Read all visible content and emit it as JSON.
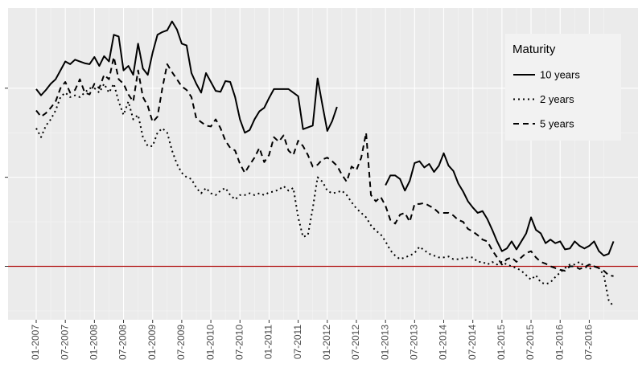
{
  "chart_data": {
    "type": "line",
    "categories": [
      "01-2007",
      null,
      null,
      null,
      null,
      null,
      "07-2007",
      null,
      null,
      null,
      null,
      null,
      "01-2008",
      null,
      null,
      null,
      null,
      null,
      "07-2008",
      null,
      null,
      null,
      null,
      null,
      "01-2009",
      null,
      null,
      null,
      null,
      null,
      "07-2009",
      null,
      null,
      null,
      null,
      null,
      "01-2010",
      null,
      null,
      null,
      null,
      null,
      "07-2010",
      null,
      null,
      null,
      null,
      null,
      "01-2011",
      null,
      null,
      null,
      null,
      null,
      "07-2011",
      null,
      null,
      null,
      null,
      null,
      "01-2012",
      null,
      null,
      null,
      null,
      null,
      "07-2012",
      null,
      null,
      null,
      null,
      null,
      "01-2013",
      null,
      null,
      null,
      null,
      null,
      "07-2013",
      null,
      null,
      null,
      null,
      null,
      "01-2014",
      null,
      null,
      null,
      null,
      null,
      "07-2014",
      null,
      null,
      null,
      null,
      null,
      "01-2015",
      null,
      null,
      null,
      null,
      null,
      "07-2015",
      null,
      null,
      null,
      null,
      null,
      "01-2016",
      null,
      null,
      null,
      null,
      null,
      "07-2016",
      null,
      null,
      null,
      null,
      null
    ],
    "series": [
      {
        "name": "10 years",
        "color": "#000000",
        "dash": "solid",
        "values": [
          1.99,
          1.92,
          1.98,
          2.05,
          2.1,
          2.2,
          2.3,
          2.27,
          2.32,
          2.3,
          2.28,
          2.27,
          2.35,
          2.25,
          2.36,
          2.3,
          2.6,
          2.58,
          2.2,
          2.25,
          2.15,
          2.5,
          2.22,
          2.15,
          2.4,
          2.6,
          2.63,
          2.65,
          2.75,
          2.66,
          2.5,
          2.48,
          2.17,
          2.05,
          1.95,
          2.17,
          2.07,
          1.97,
          1.96,
          2.08,
          2.07,
          1.9,
          1.65,
          1.5,
          1.53,
          1.65,
          1.74,
          1.78,
          1.89,
          1.99,
          1.99,
          1.99,
          1.99,
          1.95,
          1.91,
          1.54,
          1.56,
          1.58,
          2.11,
          1.81,
          1.52,
          1.63,
          1.79,
          null,
          null,
          null,
          null,
          null,
          null,
          null,
          null,
          null,
          0.91,
          1.02,
          1.02,
          0.98,
          0.85,
          0.96,
          1.16,
          1.18,
          1.11,
          1.15,
          1.06,
          1.13,
          1.27,
          1.13,
          1.07,
          0.93,
          0.84,
          0.73,
          0.66,
          0.6,
          0.62,
          0.53,
          0.41,
          0.28,
          0.17,
          0.2,
          0.28,
          0.19,
          0.28,
          0.37,
          0.55,
          0.41,
          0.37,
          0.26,
          0.3,
          0.26,
          0.28,
          0.19,
          0.2,
          0.28,
          0.23,
          0.2,
          0.23,
          0.28,
          0.17,
          0.12,
          0.14,
          0.28
        ]
      },
      {
        "name": "2 years",
        "color": "#000000",
        "dash": "dotted",
        "values": [
          1.55,
          1.45,
          1.58,
          1.65,
          1.75,
          1.9,
          1.95,
          1.9,
          1.92,
          1.9,
          1.95,
          2.0,
          2.0,
          1.95,
          2.05,
          1.95,
          2.05,
          1.85,
          1.7,
          1.85,
          1.65,
          1.7,
          1.45,
          1.35,
          1.35,
          1.5,
          1.55,
          1.5,
          1.3,
          1.15,
          1.05,
          1.0,
          0.98,
          0.88,
          0.82,
          0.88,
          0.82,
          0.8,
          0.85,
          0.88,
          0.8,
          0.75,
          0.8,
          0.8,
          0.82,
          0.8,
          0.82,
          0.8,
          0.83,
          0.84,
          0.86,
          0.9,
          0.85,
          0.88,
          0.55,
          0.33,
          0.35,
          0.65,
          1.0,
          0.95,
          0.85,
          0.82,
          0.83,
          0.85,
          0.8,
          0.72,
          0.65,
          0.6,
          0.55,
          0.46,
          0.4,
          0.36,
          0.28,
          0.18,
          0.12,
          0.08,
          0.1,
          0.12,
          0.15,
          0.22,
          0.18,
          0.14,
          0.12,
          0.1,
          0.1,
          0.11,
          0.08,
          0.08,
          0.09,
          0.1,
          0.1,
          0.05,
          0.05,
          0.02,
          0.05,
          0.02,
          0.05,
          0.02,
          0.0,
          -0.02,
          -0.05,
          -0.1,
          -0.15,
          -0.1,
          -0.18,
          -0.2,
          -0.18,
          -0.12,
          -0.07,
          -0.02,
          0.02,
          0.02,
          0.05,
          0.0,
          -0.03,
          0.0,
          -0.02,
          -0.1,
          -0.38,
          -0.45
        ]
      },
      {
        "name": "5 years",
        "color": "#000000",
        "dash": "dashed",
        "values": [
          1.75,
          1.68,
          1.72,
          1.78,
          1.85,
          2.0,
          2.07,
          1.95,
          1.98,
          2.1,
          1.95,
          1.93,
          2.05,
          2.0,
          2.15,
          2.1,
          2.35,
          2.1,
          2.05,
          1.93,
          1.85,
          2.2,
          1.9,
          1.8,
          1.62,
          1.68,
          2.0,
          2.27,
          2.18,
          2.1,
          2.02,
          1.98,
          1.9,
          1.66,
          1.62,
          1.58,
          1.57,
          1.65,
          1.55,
          1.41,
          1.33,
          1.3,
          1.15,
          1.05,
          1.14,
          1.22,
          1.33,
          1.17,
          1.25,
          1.45,
          1.4,
          1.47,
          1.3,
          1.25,
          1.41,
          1.35,
          1.25,
          1.12,
          1.14,
          1.2,
          1.22,
          1.18,
          1.13,
          1.03,
          0.95,
          1.12,
          1.08,
          1.22,
          1.5,
          0.8,
          0.73,
          0.78,
          0.68,
          0.52,
          0.48,
          0.58,
          0.6,
          0.5,
          0.7,
          0.7,
          0.71,
          0.68,
          0.65,
          0.6,
          0.6,
          0.6,
          0.57,
          0.52,
          0.5,
          0.42,
          0.39,
          0.35,
          0.3,
          0.28,
          0.18,
          0.1,
          0.02,
          0.08,
          0.1,
          0.05,
          0.1,
          0.15,
          0.17,
          0.1,
          0.05,
          0.03,
          0.0,
          -0.02,
          -0.04,
          -0.05,
          0.0,
          0.0,
          -0.03,
          -0.01,
          0.02,
          0.0,
          -0.02,
          -0.05,
          -0.1,
          -0.11
        ]
      }
    ],
    "ylim": [
      -0.6,
      2.9
    ],
    "yticks": [
      0,
      1,
      2
    ],
    "grid": true,
    "reference_line": {
      "value": 0,
      "color": "#b01010"
    },
    "legend": {
      "title": "Maturity",
      "position": "top-right"
    }
  }
}
